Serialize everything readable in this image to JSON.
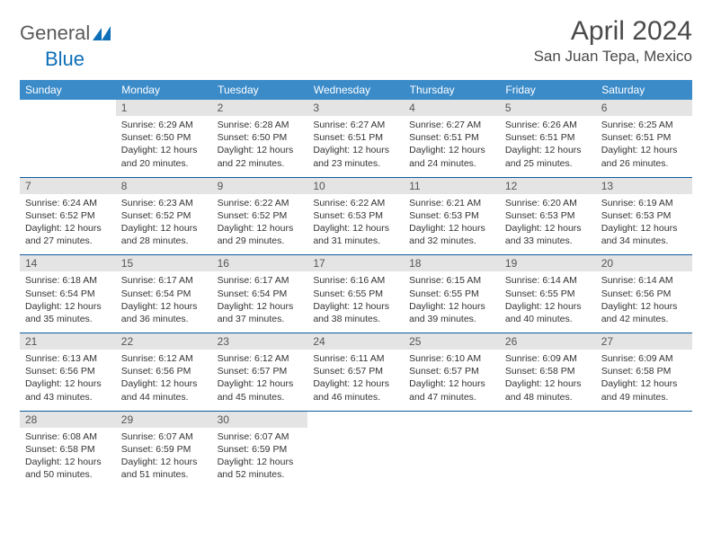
{
  "logo": {
    "text1": "General",
    "text2": "Blue"
  },
  "title": "April 2024",
  "location": "San Juan Tepa, Mexico",
  "colors": {
    "header_bg": "#3b8bc9",
    "header_text": "#ffffff",
    "daynum_bg": "#e4e4e4",
    "daynum_text": "#555555",
    "rule": "#0d5c9e",
    "logo_gray": "#5a5a5a",
    "logo_blue": "#0d6fb8"
  },
  "weekdays": [
    "Sunday",
    "Monday",
    "Tuesday",
    "Wednesday",
    "Thursday",
    "Friday",
    "Saturday"
  ],
  "weeks": [
    [
      null,
      {
        "n": "1",
        "sr": "Sunrise: 6:29 AM",
        "ss": "Sunset: 6:50 PM",
        "d1": "Daylight: 12 hours",
        "d2": "and 20 minutes."
      },
      {
        "n": "2",
        "sr": "Sunrise: 6:28 AM",
        "ss": "Sunset: 6:50 PM",
        "d1": "Daylight: 12 hours",
        "d2": "and 22 minutes."
      },
      {
        "n": "3",
        "sr": "Sunrise: 6:27 AM",
        "ss": "Sunset: 6:51 PM",
        "d1": "Daylight: 12 hours",
        "d2": "and 23 minutes."
      },
      {
        "n": "4",
        "sr": "Sunrise: 6:27 AM",
        "ss": "Sunset: 6:51 PM",
        "d1": "Daylight: 12 hours",
        "d2": "and 24 minutes."
      },
      {
        "n": "5",
        "sr": "Sunrise: 6:26 AM",
        "ss": "Sunset: 6:51 PM",
        "d1": "Daylight: 12 hours",
        "d2": "and 25 minutes."
      },
      {
        "n": "6",
        "sr": "Sunrise: 6:25 AM",
        "ss": "Sunset: 6:51 PM",
        "d1": "Daylight: 12 hours",
        "d2": "and 26 minutes."
      }
    ],
    [
      {
        "n": "7",
        "sr": "Sunrise: 6:24 AM",
        "ss": "Sunset: 6:52 PM",
        "d1": "Daylight: 12 hours",
        "d2": "and 27 minutes."
      },
      {
        "n": "8",
        "sr": "Sunrise: 6:23 AM",
        "ss": "Sunset: 6:52 PM",
        "d1": "Daylight: 12 hours",
        "d2": "and 28 minutes."
      },
      {
        "n": "9",
        "sr": "Sunrise: 6:22 AM",
        "ss": "Sunset: 6:52 PM",
        "d1": "Daylight: 12 hours",
        "d2": "and 29 minutes."
      },
      {
        "n": "10",
        "sr": "Sunrise: 6:22 AM",
        "ss": "Sunset: 6:53 PM",
        "d1": "Daylight: 12 hours",
        "d2": "and 31 minutes."
      },
      {
        "n": "11",
        "sr": "Sunrise: 6:21 AM",
        "ss": "Sunset: 6:53 PM",
        "d1": "Daylight: 12 hours",
        "d2": "and 32 minutes."
      },
      {
        "n": "12",
        "sr": "Sunrise: 6:20 AM",
        "ss": "Sunset: 6:53 PM",
        "d1": "Daylight: 12 hours",
        "d2": "and 33 minutes."
      },
      {
        "n": "13",
        "sr": "Sunrise: 6:19 AM",
        "ss": "Sunset: 6:53 PM",
        "d1": "Daylight: 12 hours",
        "d2": "and 34 minutes."
      }
    ],
    [
      {
        "n": "14",
        "sr": "Sunrise: 6:18 AM",
        "ss": "Sunset: 6:54 PM",
        "d1": "Daylight: 12 hours",
        "d2": "and 35 minutes."
      },
      {
        "n": "15",
        "sr": "Sunrise: 6:17 AM",
        "ss": "Sunset: 6:54 PM",
        "d1": "Daylight: 12 hours",
        "d2": "and 36 minutes."
      },
      {
        "n": "16",
        "sr": "Sunrise: 6:17 AM",
        "ss": "Sunset: 6:54 PM",
        "d1": "Daylight: 12 hours",
        "d2": "and 37 minutes."
      },
      {
        "n": "17",
        "sr": "Sunrise: 6:16 AM",
        "ss": "Sunset: 6:55 PM",
        "d1": "Daylight: 12 hours",
        "d2": "and 38 minutes."
      },
      {
        "n": "18",
        "sr": "Sunrise: 6:15 AM",
        "ss": "Sunset: 6:55 PM",
        "d1": "Daylight: 12 hours",
        "d2": "and 39 minutes."
      },
      {
        "n": "19",
        "sr": "Sunrise: 6:14 AM",
        "ss": "Sunset: 6:55 PM",
        "d1": "Daylight: 12 hours",
        "d2": "and 40 minutes."
      },
      {
        "n": "20",
        "sr": "Sunrise: 6:14 AM",
        "ss": "Sunset: 6:56 PM",
        "d1": "Daylight: 12 hours",
        "d2": "and 42 minutes."
      }
    ],
    [
      {
        "n": "21",
        "sr": "Sunrise: 6:13 AM",
        "ss": "Sunset: 6:56 PM",
        "d1": "Daylight: 12 hours",
        "d2": "and 43 minutes."
      },
      {
        "n": "22",
        "sr": "Sunrise: 6:12 AM",
        "ss": "Sunset: 6:56 PM",
        "d1": "Daylight: 12 hours",
        "d2": "and 44 minutes."
      },
      {
        "n": "23",
        "sr": "Sunrise: 6:12 AM",
        "ss": "Sunset: 6:57 PM",
        "d1": "Daylight: 12 hours",
        "d2": "and 45 minutes."
      },
      {
        "n": "24",
        "sr": "Sunrise: 6:11 AM",
        "ss": "Sunset: 6:57 PM",
        "d1": "Daylight: 12 hours",
        "d2": "and 46 minutes."
      },
      {
        "n": "25",
        "sr": "Sunrise: 6:10 AM",
        "ss": "Sunset: 6:57 PM",
        "d1": "Daylight: 12 hours",
        "d2": "and 47 minutes."
      },
      {
        "n": "26",
        "sr": "Sunrise: 6:09 AM",
        "ss": "Sunset: 6:58 PM",
        "d1": "Daylight: 12 hours",
        "d2": "and 48 minutes."
      },
      {
        "n": "27",
        "sr": "Sunrise: 6:09 AM",
        "ss": "Sunset: 6:58 PM",
        "d1": "Daylight: 12 hours",
        "d2": "and 49 minutes."
      }
    ],
    [
      {
        "n": "28",
        "sr": "Sunrise: 6:08 AM",
        "ss": "Sunset: 6:58 PM",
        "d1": "Daylight: 12 hours",
        "d2": "and 50 minutes."
      },
      {
        "n": "29",
        "sr": "Sunrise: 6:07 AM",
        "ss": "Sunset: 6:59 PM",
        "d1": "Daylight: 12 hours",
        "d2": "and 51 minutes."
      },
      {
        "n": "30",
        "sr": "Sunrise: 6:07 AM",
        "ss": "Sunset: 6:59 PM",
        "d1": "Daylight: 12 hours",
        "d2": "and 52 minutes."
      },
      null,
      null,
      null,
      null
    ]
  ]
}
